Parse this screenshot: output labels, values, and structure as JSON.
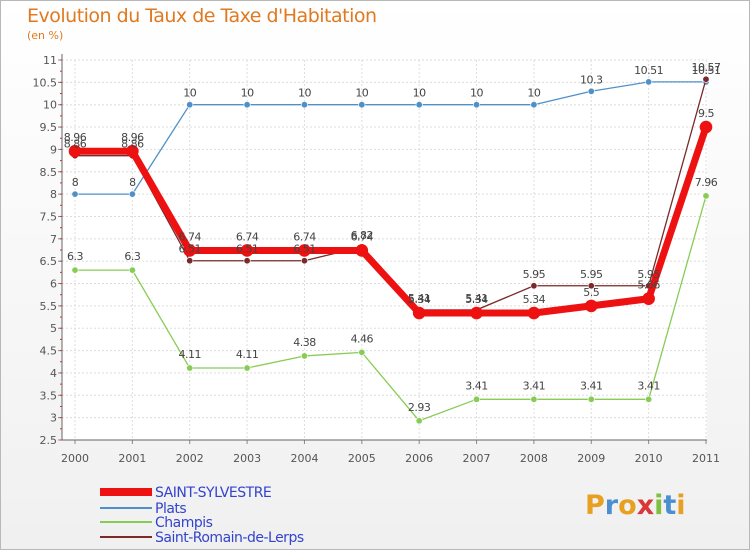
{
  "header": {
    "title": "Evolution du Taux de Taxe d'Habitation",
    "subtitle": "(en %)"
  },
  "logo": {
    "text": "Proxiti"
  },
  "chart_data": {
    "type": "line",
    "title": "Evolution du Taux de Taxe d'Habitation",
    "subtitle": "(en %)",
    "xlabel": "",
    "ylabel": "",
    "ylim": [
      2.5,
      11
    ],
    "yticks": [
      "2.5",
      "3",
      "3.5",
      "4",
      "4.5",
      "5",
      "5.5",
      "6",
      "6.5",
      "7",
      "7.5",
      "8",
      "8.5",
      "9",
      "9.5",
      "10",
      "10.5",
      "11"
    ],
    "categories": [
      "2000",
      "2001",
      "2002",
      "2003",
      "2004",
      "2005",
      "2006",
      "2007",
      "2008",
      "2009",
      "2010",
      "2011"
    ],
    "grid": true,
    "legend_position": "bottom-left",
    "series": [
      {
        "name": "Plats",
        "color": "#4f90c8",
        "values": [
          8,
          8,
          10,
          10,
          10,
          10,
          10,
          10,
          10,
          10.3,
          10.51,
          10.51
        ],
        "labels": [
          "8",
          "8",
          "10",
          "10",
          "10",
          "10",
          "10",
          "10",
          "10",
          "10.3",
          "10.51",
          "10.51"
        ]
      },
      {
        "name": "Champis",
        "color": "#88cc55",
        "values": [
          6.3,
          6.3,
          4.11,
          4.11,
          4.38,
          4.46,
          2.93,
          3.41,
          3.41,
          3.41,
          3.41,
          7.96
        ],
        "labels": [
          "6.3",
          "6.3",
          "4.11",
          "4.11",
          "4.38",
          "4.46",
          "2.93",
          "3.41",
          "3.41",
          "3.41",
          "3.41",
          "7.96"
        ]
      },
      {
        "name": "Saint-Romain-de-Lerps",
        "color": "#7a2a2a",
        "values": [
          8.86,
          8.86,
          6.51,
          6.51,
          6.51,
          6.82,
          5.41,
          5.41,
          5.95,
          5.95,
          5.95,
          10.57
        ],
        "labels": [
          "8.86",
          "8.86",
          "6.51",
          "6.51",
          "6.51",
          "6.82",
          "5.41",
          "5.41",
          "5.95",
          "5.95",
          "5.95",
          "10.57"
        ]
      },
      {
        "name": "SAINT-SYLVESTRE",
        "color": "#ee1111",
        "values": [
          8.96,
          8.96,
          6.74,
          6.74,
          6.74,
          6.74,
          5.34,
          5.34,
          5.34,
          5.5,
          5.66,
          9.5
        ],
        "labels": [
          "8.96",
          "8.96",
          "6.74",
          "6.74",
          "6.74",
          "6.74",
          "5.34",
          "5.34",
          "5.34",
          "5.5",
          "5.66",
          "9.5"
        ]
      }
    ],
    "legend": [
      "SAINT-SYLVESTRE",
      "Plats",
      "Champis",
      "Saint-Romain-de-Lerps"
    ]
  }
}
